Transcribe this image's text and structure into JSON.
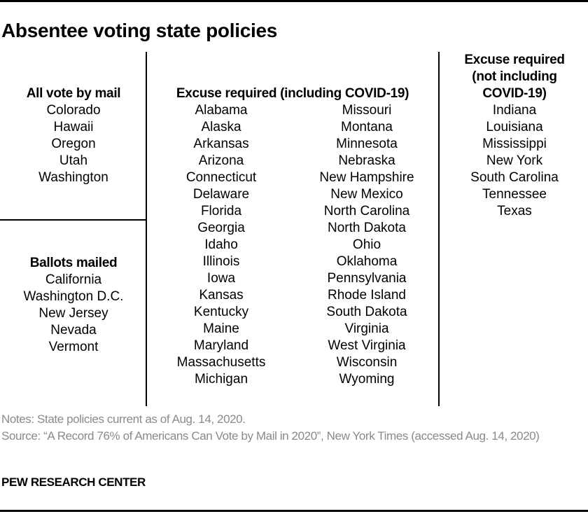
{
  "title": "Absentee voting state policies",
  "groups": {
    "all_vote_by_mail": {
      "heading": "All vote by mail",
      "states": [
        "Colorado",
        "Hawaii",
        "Oregon",
        "Utah",
        "Washington"
      ]
    },
    "ballots_mailed": {
      "heading": "Ballots mailed",
      "states": [
        "California",
        "Washington D.C.",
        "New Jersey",
        "Nevada",
        "Vermont"
      ]
    },
    "excuse_including_covid": {
      "heading": "Excuse required (including COVID-19)",
      "states_col1": [
        "Alabama",
        "Alaska",
        "Arkansas",
        "Arizona",
        "Connecticut",
        "Delaware",
        "Florida",
        "Georgia",
        "Idaho",
        "Illinois",
        "Iowa",
        "Kansas",
        "Kentucky",
        "Maine",
        "Maryland",
        "Massachusetts",
        "Michigan"
      ],
      "states_col2": [
        "Missouri",
        "Montana",
        "Minnesota",
        "Nebraska",
        "New Hampshire",
        "New Mexico",
        "North Carolina",
        "North Dakota",
        "Ohio",
        "Oklahoma",
        "Pennsylvania",
        "Rhode Island",
        "South Dakota",
        "Virginia",
        "West Virginia",
        "Wisconsin",
        "Wyoming"
      ]
    },
    "excuse_not_including_covid": {
      "heading_lines": [
        "Excuse required",
        "(not including",
        "COVID-19)"
      ],
      "states": [
        "Indiana",
        "Louisiana",
        "Mississippi",
        "New York",
        "South Carolina",
        "Tennessee",
        "Texas"
      ]
    }
  },
  "notes": {
    "note": "Notes: State policies current as of Aug. 14, 2020.",
    "source": "Source: “A Record 76% of Americans Can Vote by Mail in 2020”, New York Times (accessed Aug. 14, 2020)"
  },
  "brand": "PEW RESEARCH CENTER"
}
